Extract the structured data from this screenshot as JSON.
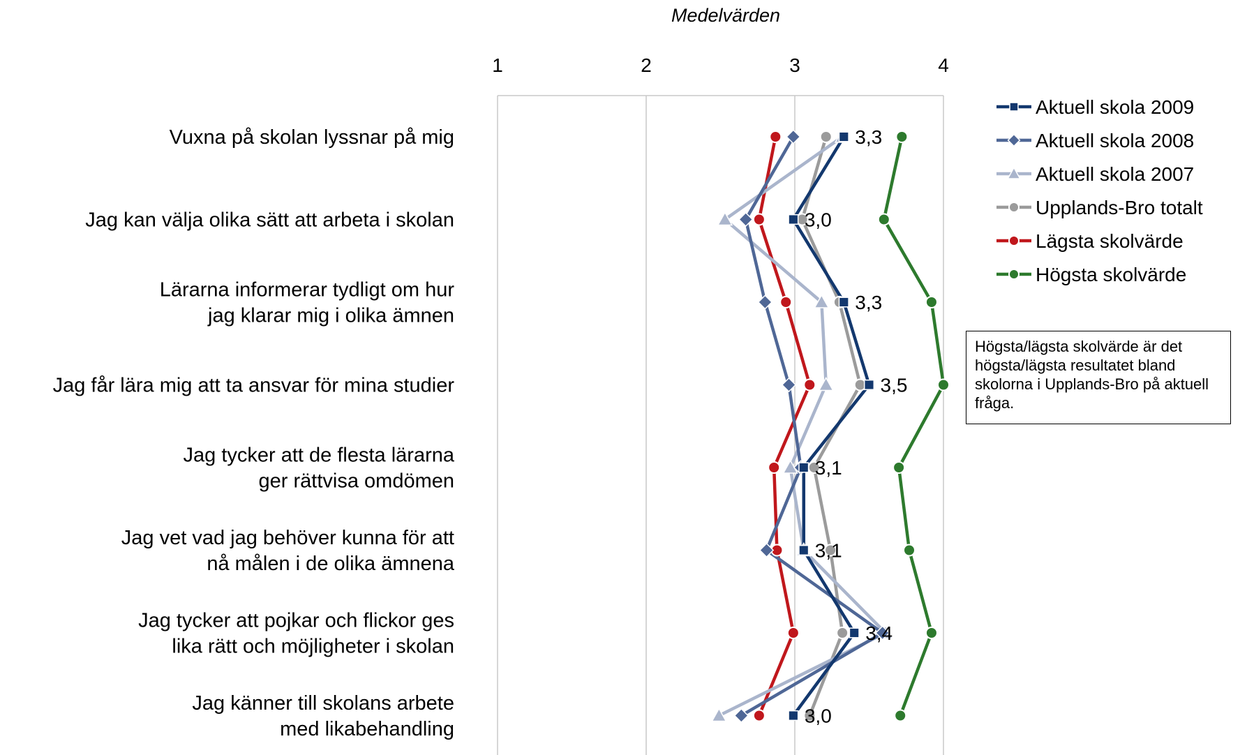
{
  "chart_data": {
    "type": "line",
    "orientation": "horizontal-values",
    "title": "Medelvärden",
    "xlim": [
      1,
      4
    ],
    "xticks": [
      "1",
      "2",
      "3",
      "4"
    ],
    "grid": true,
    "legend_position": "right",
    "categories": [
      [
        "Vuxna på skolan lyssnar på mig"
      ],
      [
        "Jag kan välja olika sätt att arbeta i skolan"
      ],
      [
        "Lärarna informerar tydligt om hur",
        "jag klarar mig i olika ämnen"
      ],
      [
        "Jag får lära mig att ta ansvar för mina studier"
      ],
      [
        "Jag tycker att de flesta lärarna",
        "ger rättvisa omdömen"
      ],
      [
        "Jag vet vad jag behöver kunna för att",
        "nå målen i de olika ämnena"
      ],
      [
        "Jag tycker att pojkar och flickor ges",
        "lika rätt och möjligheter i skolan"
      ],
      [
        "Jag känner till skolans arbete",
        "med likabehandling"
      ]
    ],
    "series": [
      {
        "name": "Lägsta skolvärde",
        "color": "#c0171c",
        "marker": "circle",
        "values": [
          2.87,
          2.76,
          2.94,
          3.1,
          2.86,
          2.88,
          2.99,
          2.76
        ]
      },
      {
        "name": "Högsta skolvärde",
        "color": "#2d7a2d",
        "marker": "circle",
        "values": [
          3.72,
          3.6,
          3.92,
          4.0,
          3.7,
          3.77,
          3.92,
          3.71
        ]
      },
      {
        "name": "Upplands-Bro totalt",
        "color": "#9b9b9b",
        "marker": "circle",
        "values": [
          3.21,
          3.05,
          3.3,
          3.44,
          3.13,
          3.24,
          3.32,
          3.1
        ]
      },
      {
        "name": "Aktuell skola 2007",
        "color": "#aab5cc",
        "marker": "triangle",
        "values": [
          3.32,
          2.53,
          3.18,
          3.21,
          2.97,
          3.06,
          3.61,
          2.49
        ]
      },
      {
        "name": "Aktuell skola 2008",
        "color": "#4f6796",
        "marker": "diamond",
        "values": [
          2.99,
          2.67,
          2.8,
          2.96,
          3.04,
          2.81,
          3.59,
          2.64
        ]
      },
      {
        "name": "Aktuell skola 2009",
        "color": "#13386e",
        "marker": "square",
        "values": [
          3.33,
          2.99,
          3.33,
          3.5,
          3.06,
          3.06,
          3.4,
          2.99
        ],
        "data_labels": [
          "3,3",
          "3,0",
          "3,3",
          "3,5",
          "3,1",
          "3,1",
          "3,4",
          "3,0"
        ]
      }
    ],
    "legend": [
      {
        "name": "Aktuell skola 2009",
        "color": "#13386e",
        "marker": "square"
      },
      {
        "name": "Aktuell skola 2008",
        "color": "#4f6796",
        "marker": "diamond"
      },
      {
        "name": "Aktuell skola 2007",
        "color": "#aab5cc",
        "marker": "triangle"
      },
      {
        "name": "Upplands-Bro totalt",
        "color": "#9b9b9b",
        "marker": "circle"
      },
      {
        "name": "Lägsta skolvärde",
        "color": "#c0171c",
        "marker": "circle"
      },
      {
        "name": "Högsta skolvärde",
        "color": "#2d7a2d",
        "marker": "circle"
      }
    ]
  },
  "note": {
    "text": "Högsta/lägsta skolvärde är det högsta/lägsta resultatet bland skolorna i Upplands-Bro på aktuell fråga."
  }
}
